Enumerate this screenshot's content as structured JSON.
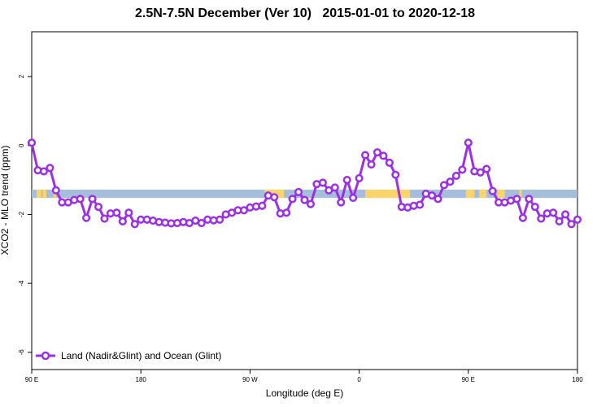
{
  "chart_data": {
    "type": "line",
    "title": "2.5N-7.5N December (Ver 10)   2015-01-01 to 2020-12-18",
    "xlabel": "Longitude (deg E)",
    "ylabel": "XCO2 - MLO trend (ppm)",
    "x_ticks": [
      "90 E",
      "180",
      "90 W",
      "0",
      "90 E",
      "180"
    ],
    "x_tick_values": [
      90,
      180,
      270,
      360,
      450,
      540
    ],
    "y_ticks": [
      2,
      0,
      -2,
      -4,
      -6
    ],
    "xlim": [
      90,
      540
    ],
    "ylim": [
      -6.5,
      3.3
    ],
    "grid": false,
    "legend_position": "bottom-left",
    "colors": {
      "series": "#9b30e6",
      "ocean_band": "#a6bddb",
      "land_band": "#fcd56a"
    },
    "surface_band": {
      "y_range": [
        -1.52,
        -1.28
      ],
      "land_spans": [
        [
          94,
          98
        ],
        [
          99,
          102
        ],
        [
          108,
          110
        ],
        [
          282,
          298
        ],
        [
          365,
          402
        ],
        [
          448,
          455
        ],
        [
          459,
          465
        ],
        [
          474,
          480
        ],
        [
          492,
          494
        ]
      ]
    },
    "series": [
      {
        "name": "Land (Nadir&Glint) and Ocean (Glint)",
        "x": [
          90,
          95,
          100,
          105,
          110,
          115,
          120,
          125,
          130,
          135,
          140,
          145,
          150,
          155,
          160,
          165,
          170,
          175,
          180,
          185,
          190,
          195,
          200,
          205,
          210,
          215,
          220,
          225,
          230,
          235,
          240,
          245,
          250,
          255,
          260,
          265,
          270,
          275,
          280,
          285,
          290,
          295,
          300,
          305,
          310,
          315,
          320,
          325,
          330,
          335,
          340,
          345,
          350,
          355,
          360,
          365,
          370,
          375,
          380,
          385,
          390,
          395,
          400,
          405,
          410,
          415,
          420,
          425,
          430,
          435,
          440,
          445,
          450,
          455,
          460,
          465,
          470,
          475,
          480,
          485,
          490,
          495,
          500,
          505,
          510,
          515,
          520,
          525,
          530,
          535,
          540
        ],
        "y": [
          0.08,
          -0.72,
          -0.75,
          -0.65,
          -1.3,
          -1.65,
          -1.65,
          -1.58,
          -1.55,
          -2.1,
          -1.55,
          -1.78,
          -2.12,
          -1.97,
          -1.95,
          -2.2,
          -1.95,
          -2.28,
          -2.15,
          -2.15,
          -2.18,
          -2.22,
          -2.24,
          -2.26,
          -2.25,
          -2.22,
          -2.25,
          -2.18,
          -2.25,
          -2.15,
          -2.17,
          -2.15,
          -2.0,
          -1.95,
          -1.88,
          -1.88,
          -1.8,
          -1.77,
          -1.75,
          -1.45,
          -1.5,
          -1.97,
          -1.95,
          -1.55,
          -1.35,
          -1.58,
          -1.7,
          -1.12,
          -1.08,
          -1.3,
          -1.22,
          -1.65,
          -1.0,
          -1.52,
          -0.95,
          -0.28,
          -0.55,
          -0.2,
          -0.3,
          -0.5,
          -0.85,
          -1.78,
          -1.8,
          -1.75,
          -1.72,
          -1.4,
          -1.45,
          -1.55,
          -1.15,
          -1.05,
          -0.88,
          -0.7,
          0.08,
          -0.75,
          -0.78,
          -0.68,
          -1.32,
          -1.65,
          -1.65,
          -1.6,
          -1.55,
          -2.1,
          -1.55,
          -1.78,
          -2.12,
          -1.97,
          -1.95,
          -2.2,
          -2.0,
          -2.28,
          -2.15
        ]
      }
    ]
  }
}
